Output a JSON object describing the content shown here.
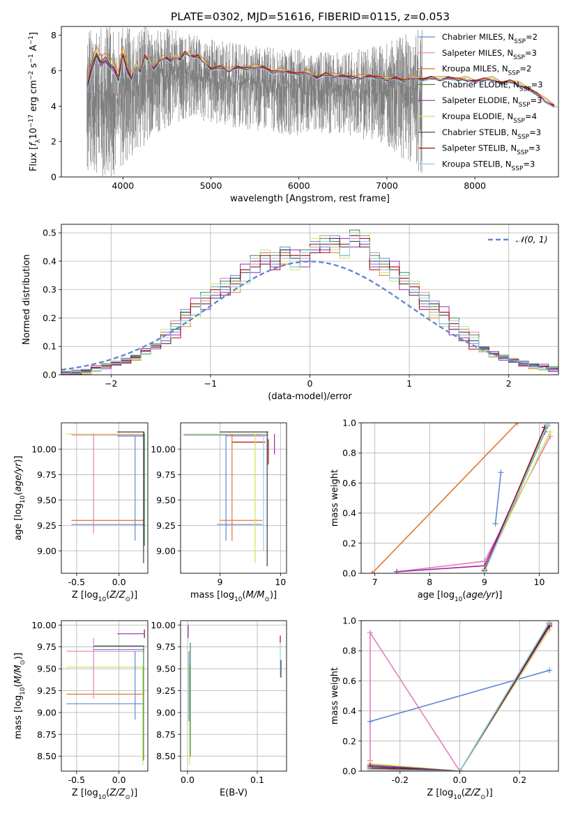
{
  "figure_title": "PLATE=0302, MJD=51616, FIBERID=0115, z=0.053",
  "legend_entries": [
    {
      "label": "Chabrier MILES, N",
      "sub": "SSP",
      "val": "=2",
      "color": "#5f87d6"
    },
    {
      "label": "Salpeter MILES, N",
      "sub": "SSP",
      "val": "=3",
      "color": "#e27fb8"
    },
    {
      "label": "Kroupa MILES, N",
      "sub": "SSP",
      "val": "=2",
      "color": "#e0762e"
    },
    {
      "label": "Chabrier ELODIE, N",
      "sub": "SSP",
      "val": "=3",
      "color": "#3c8c4a"
    },
    {
      "label": "Salpeter ELODIE, N",
      "sub": "SSP",
      "val": "=3",
      "color": "#9b27b0"
    },
    {
      "label": "Kroupa ELODIE, N",
      "sub": "SSP",
      "val": "=4",
      "color": "#cfe35a"
    },
    {
      "label": "Chabrier STELIB, N",
      "sub": "SSP",
      "val": "=3",
      "color": "#3a3a3a"
    },
    {
      "label": "Salpeter STELIB, N",
      "sub": "SSP",
      "val": "=3",
      "color": "#a30c0c"
    },
    {
      "label": "Kroupa STELIB, N",
      "sub": "SSP",
      "val": "=3",
      "color": "#8fd0e6"
    }
  ],
  "chart_data": [
    {
      "type": "line",
      "id": "spectrum",
      "xlabel": "wavelength [Angstrom, rest frame]",
      "ylabel": "Flux [fλ10⁻¹⁷ erg cm⁻² s⁻¹ A⁻¹]",
      "xlim": [
        3300,
        8950
      ],
      "ylim": [
        0,
        8.5
      ],
      "xticks": [
        4000,
        5000,
        6000,
        7000,
        8000
      ],
      "yticks": [
        0,
        2,
        4,
        6,
        8
      ],
      "data_color": "#808080",
      "data_envelope": {
        "x": [
          3590,
          3700,
          3800,
          3900,
          4000,
          4100,
          4200,
          4300,
          4500,
          4800,
          5000,
          5500,
          6000,
          6500,
          7000,
          7400
        ],
        "low": [
          0,
          0,
          0,
          0,
          0.5,
          0.8,
          1.5,
          2.2,
          2.8,
          3.2,
          3.0,
          2.6,
          2.3,
          2.4,
          1.8,
          0
        ],
        "high": [
          8.5,
          8.5,
          8.5,
          8.5,
          8.5,
          8.5,
          8.5,
          8.5,
          8.4,
          8.0,
          7.8,
          7.4,
          7.2,
          7.0,
          7.6,
          8.5
        ]
      },
      "model": {
        "x": [
          3600,
          3650,
          3700,
          3750,
          3800,
          3850,
          3900,
          3950,
          4000,
          4050,
          4100,
          4150,
          4200,
          4250,
          4300,
          4350,
          4400,
          4450,
          4500,
          4550,
          4600,
          4650,
          4700,
          4750,
          4800,
          4850,
          4900,
          5000,
          5100,
          5200,
          5300,
          5400,
          5500,
          5600,
          5700,
          5800,
          5900,
          6000,
          6100,
          6200,
          6300,
          6400,
          6500,
          6600,
          6700,
          6800,
          6900,
          7000,
          7100,
          7200,
          7300,
          7400,
          7500,
          7600,
          7700,
          7800,
          7900,
          8000,
          8100,
          8200,
          8300,
          8400,
          8500,
          8600,
          8700,
          8800,
          8900
        ],
        "y": [
          5.2,
          6.2,
          6.9,
          6.4,
          6.6,
          6.3,
          6.1,
          5.5,
          6.9,
          6.0,
          5.5,
          6.3,
          5.9,
          6.8,
          6.5,
          6.1,
          6.4,
          6.7,
          6.7,
          6.5,
          6.8,
          6.6,
          7.0,
          6.9,
          6.8,
          6.8,
          6.6,
          6.1,
          6.2,
          6.0,
          6.2,
          6.1,
          6.2,
          6.2,
          5.9,
          6.0,
          5.9,
          5.8,
          5.9,
          5.6,
          5.8,
          5.7,
          5.7,
          5.6,
          5.6,
          5.7,
          5.6,
          5.5,
          5.6,
          5.4,
          5.6,
          5.5,
          5.6,
          5.5,
          5.6,
          5.5,
          5.5,
          5.4,
          5.5,
          5.5,
          5.3,
          5.4,
          5.2,
          5.0,
          4.7,
          4.3,
          4.0
        ]
      }
    },
    {
      "type": "bar",
      "id": "residual-histogram",
      "xlabel": "(data-model)/error",
      "ylabel": "Normed distribution",
      "xlim": [
        -2.5,
        2.5
      ],
      "ylim": [
        0,
        0.53
      ],
      "xticks": [
        -2,
        -1,
        0,
        1,
        2
      ],
      "yticks": [
        0.0,
        0.1,
        0.2,
        0.3,
        0.4,
        0.5
      ],
      "bin_edges": [
        -2.5,
        -2.4,
        -2.3,
        -2.2,
        -2.1,
        -2.0,
        -1.9,
        -1.8,
        -1.7,
        -1.6,
        -1.5,
        -1.4,
        -1.3,
        -1.2,
        -1.1,
        -1.0,
        -0.9,
        -0.8,
        -0.7,
        -0.6,
        -0.5,
        -0.4,
        -0.3,
        -0.2,
        -0.1,
        0.0,
        0.1,
        0.2,
        0.3,
        0.4,
        0.5,
        0.6,
        0.7,
        0.8,
        0.9,
        1.0,
        1.1,
        1.2,
        1.3,
        1.4,
        1.5,
        1.6,
        1.7,
        1.8,
        1.9,
        2.0,
        2.1,
        2.2,
        2.3,
        2.4,
        2.5
      ],
      "base_heights": [
        0.005,
        0.008,
        0.01,
        0.02,
        0.03,
        0.04,
        0.05,
        0.06,
        0.08,
        0.1,
        0.13,
        0.16,
        0.2,
        0.23,
        0.26,
        0.29,
        0.31,
        0.32,
        0.35,
        0.39,
        0.41,
        0.4,
        0.42,
        0.4,
        0.41,
        0.45,
        0.46,
        0.46,
        0.44,
        0.48,
        0.47,
        0.4,
        0.38,
        0.36,
        0.33,
        0.3,
        0.26,
        0.23,
        0.2,
        0.17,
        0.14,
        0.12,
        0.09,
        0.07,
        0.06,
        0.05,
        0.04,
        0.03,
        0.025,
        0.02
      ],
      "normal_curve": {
        "label": "𝒩(0, 1)",
        "color": "#5f87d6"
      }
    },
    {
      "type": "scatter",
      "id": "age-vs-Z",
      "xlabel": "Z [log10(Z/Z⊙)]",
      "ylabel": "age [log10(age/yr)]",
      "xlim": [
        -0.68,
        0.34
      ],
      "ylim": [
        8.78,
        10.26
      ],
      "xticks": [
        -0.5,
        0.0
      ],
      "yticks": [
        9.0,
        9.25,
        9.5,
        9.75,
        10.0
      ],
      "segments": [
        {
          "c": "#cfe35a",
          "y": 10.15,
          "x0": -0.62,
          "x1": 0.3
        },
        {
          "c": "#3a3a3a",
          "y": 10.17,
          "x0": -0.02,
          "x1": 0.3
        },
        {
          "c": "#e27fb8",
          "y": 10.14,
          "x0": -0.56,
          "x1": 0.3
        },
        {
          "c": "#5f87d6",
          "y": 10.13,
          "x0": -0.02,
          "x1": 0.3
        },
        {
          "c": "#e27fb8",
          "y": 9.3,
          "x0": -0.56,
          "x1": 0.3
        },
        {
          "c": "#e0762e",
          "y": 9.3,
          "x0": -0.56,
          "x1": 0.3
        },
        {
          "c": "#5f87d6",
          "y": 9.26,
          "x0": -0.56,
          "x1": 0.3
        },
        {
          "c": "#e27fb8",
          "vx": -0.3,
          "y0": 9.17,
          "y1": 10.15
        },
        {
          "c": "#5f87d6",
          "vx": 0.19,
          "y0": 9.1,
          "y1": 10.13
        },
        {
          "c": "#3a3a3a",
          "vx": 0.29,
          "y0": 8.88,
          "y1": 10.17
        },
        {
          "c": "#3c8c4a",
          "vx": 0.3,
          "y0": 9.05,
          "y1": 10.16
        }
      ]
    },
    {
      "type": "scatter",
      "id": "age-vs-mass",
      "xlabel": "mass [log10(M/M⊙)]",
      "ylabel": "",
      "xlim": [
        8.35,
        10.1
      ],
      "ylim": [
        8.78,
        10.26
      ],
      "xticks": [
        9,
        10
      ],
      "yticks": [
        9.0,
        9.25,
        9.5,
        9.75,
        10.0
      ],
      "segments": [
        {
          "c": "#cfe35a",
          "y": 10.15,
          "x0": 8.4,
          "x1": 9.75
        },
        {
          "c": "#3a3a3a",
          "y": 10.17,
          "x0": 9.0,
          "x1": 9.8
        },
        {
          "c": "#5f87d6",
          "y": 10.14,
          "x0": 8.4,
          "x1": 9.8
        },
        {
          "c": "#e27fb8",
          "y": 10.13,
          "x0": 9.1,
          "x1": 9.75
        },
        {
          "c": "#a30c0c",
          "y": 10.07,
          "x0": 9.2,
          "x1": 9.75
        },
        {
          "c": "#e0762e",
          "y": 9.3,
          "x0": 9.0,
          "x1": 9.7
        },
        {
          "c": "#5f87d6",
          "y": 9.26,
          "x0": 8.95,
          "x1": 9.7
        },
        {
          "c": "#5f87d6",
          "vx": 9.1,
          "y0": 9.1,
          "y1": 10.14
        },
        {
          "c": "#e0762e",
          "vx": 9.2,
          "y0": 9.1,
          "y1": 10.15
        },
        {
          "c": "#cfe35a",
          "vx": 9.58,
          "y0": 8.88,
          "y1": 10.15
        },
        {
          "c": "#8fd0e6",
          "vx": 9.72,
          "y0": 9.0,
          "y1": 10.15
        },
        {
          "c": "#3a3a3a",
          "vx": 9.78,
          "y0": 8.85,
          "y1": 10.17
        },
        {
          "c": "#9b27b0",
          "vx": 9.9,
          "y0": 9.95,
          "y1": 10.15
        },
        {
          "c": "#a30c0c",
          "vx": 9.8,
          "y0": 9.85,
          "y1": 10.1
        }
      ]
    },
    {
      "type": "line",
      "id": "mass-weight-vs-age",
      "xlabel": "age [log10(age/yr)]",
      "ylabel": "mass weight",
      "xlim": [
        6.75,
        10.35
      ],
      "ylim": [
        0,
        1.0
      ],
      "xticks": [
        7,
        8,
        9,
        10
      ],
      "yticks": [
        0.0,
        0.2,
        0.4,
        0.6,
        0.8,
        1.0
      ],
      "series": [
        {
          "c": "#e0762e",
          "x": [
            6.95,
            9.6
          ],
          "y": [
            0.0,
            1.0
          ]
        },
        {
          "c": "#e27fb8",
          "x": [
            7.4,
            9.0,
            10.2
          ],
          "y": [
            0.01,
            0.08,
            0.91
          ]
        },
        {
          "c": "#9b27b0",
          "x": [
            7.4,
            9.0,
            10.1
          ],
          "y": [
            0.01,
            0.05,
            0.94
          ]
        },
        {
          "c": "#cfe35a",
          "x": [
            9.0,
            10.2
          ],
          "y": [
            0.03,
            0.94
          ]
        },
        {
          "c": "#3a3a3a",
          "x": [
            9.0,
            10.1
          ],
          "y": [
            0.02,
            0.97
          ]
        },
        {
          "c": "#a30c0c",
          "x": [
            9.0,
            10.1
          ],
          "y": [
            0.02,
            0.97
          ]
        },
        {
          "c": "#3c8c4a",
          "x": [
            9.0,
            10.15
          ],
          "y": [
            0.01,
            0.98
          ]
        },
        {
          "c": "#8fd0e6",
          "x": [
            9.0,
            10.15
          ],
          "y": [
            0.01,
            0.99
          ]
        },
        {
          "c": "#5f87d6",
          "x": [
            9.2,
            9.3
          ],
          "y": [
            0.33,
            0.67
          ]
        }
      ]
    },
    {
      "type": "scatter",
      "id": "mass-vs-Z",
      "xlabel": "Z [log10(Z/Z⊙)]",
      "ylabel": "mass [log10(M/M⊙)]",
      "xlim": [
        -0.68,
        0.34
      ],
      "ylim": [
        8.33,
        10.05
      ],
      "xticks": [
        -0.5,
        0.0
      ],
      "yticks": [
        8.5,
        8.75,
        9.0,
        9.25,
        9.5,
        9.75,
        10.0
      ],
      "segments": [
        {
          "c": "#9b27b0",
          "y": 9.9,
          "x0": -0.02,
          "x1": 0.3
        },
        {
          "c": "#3a3a3a",
          "y": 9.76,
          "x0": -0.3,
          "x1": 0.3
        },
        {
          "c": "#5f87d6",
          "y": 9.72,
          "x0": -0.3,
          "x1": 0.3
        },
        {
          "c": "#e27fb8",
          "y": 9.7,
          "x0": -0.62,
          "x1": 0.3
        },
        {
          "c": "#cfe35a",
          "y": 9.52,
          "x0": -0.62,
          "x1": 0.3
        },
        {
          "c": "#e0762e",
          "y": 9.21,
          "x0": -0.62,
          "x1": 0.3
        },
        {
          "c": "#5f87d6",
          "y": 9.1,
          "x0": -0.62,
          "x1": 0.3
        },
        {
          "c": "#e27fb8",
          "vx": -0.3,
          "y0": 9.16,
          "y1": 9.85
        },
        {
          "c": "#5f87d6",
          "vx": 0.19,
          "y0": 8.92,
          "y1": 9.7
        },
        {
          "c": "#cfe35a",
          "vx": 0.28,
          "y0": 8.4,
          "y1": 9.52
        },
        {
          "c": "#3c8c4a",
          "vx": 0.29,
          "y0": 8.45,
          "y1": 9.75
        },
        {
          "c": "#a30c0c",
          "vx": 0.3,
          "y0": 9.85,
          "y1": 9.95
        }
      ]
    },
    {
      "type": "scatter",
      "id": "mass-vs-EBV",
      "xlabel": "E(B-V)",
      "ylabel": "",
      "xlim": [
        -0.01,
        0.142
      ],
      "ylim": [
        8.33,
        10.05
      ],
      "xticks": [
        0.0,
        0.1
      ],
      "yticks": [
        8.5,
        8.75,
        9.0,
        9.25,
        9.5,
        9.75,
        10.0
      ],
      "segments": [
        {
          "c": "#9b27b0",
          "vx": 0.001,
          "y0": 9.85,
          "y1": 10.0
        },
        {
          "c": "#cfe35a",
          "vx": 0.003,
          "y0": 8.4,
          "y1": 9.55
        },
        {
          "c": "#3c8c4a",
          "vx": 0.004,
          "y0": 8.5,
          "y1": 9.8
        },
        {
          "c": "#5f87d6",
          "vx": 0.002,
          "y0": 8.9,
          "y1": 9.7
        },
        {
          "c": "#a30c0c",
          "vx": 0.133,
          "y0": 9.8,
          "y1": 9.88
        },
        {
          "c": "#8fd0e6",
          "vx": 0.133,
          "y0": 9.4,
          "y1": 9.8
        },
        {
          "c": "#3a3a3a",
          "vx": 0.134,
          "y0": 9.4,
          "y1": 9.6
        }
      ]
    },
    {
      "type": "line",
      "id": "mass-weight-vs-Z",
      "xlabel": "Z [log10(Z/Z⊙)]",
      "ylabel": "mass weight",
      "xlim": [
        -0.33,
        0.33
      ],
      "ylim": [
        0,
        1.0
      ],
      "xticks": [
        -0.2,
        0.0,
        0.2
      ],
      "yticks": [
        0.0,
        0.2,
        0.4,
        0.6,
        0.8,
        1.0
      ],
      "series": [
        {
          "c": "#e27fb8",
          "x": [
            -0.3,
            -0.3,
            0.0,
            0.3
          ],
          "y": [
            0.07,
            0.92,
            0.0,
            0.97
          ]
        },
        {
          "c": "#5f87d6",
          "x": [
            -0.3,
            0.3
          ],
          "y": [
            0.33,
            0.67
          ]
        },
        {
          "c": "#cfe35a",
          "x": [
            -0.3,
            0.0,
            0.3
          ],
          "y": [
            0.05,
            0.0,
            0.94
          ]
        },
        {
          "c": "#9b27b0",
          "x": [
            -0.3,
            0.0,
            0.3
          ],
          "y": [
            0.04,
            0.0,
            0.96
          ]
        },
        {
          "c": "#3a3a3a",
          "x": [
            -0.3,
            0.0,
            0.3
          ],
          "y": [
            0.03,
            0.0,
            0.97
          ]
        },
        {
          "c": "#a30c0c",
          "x": [
            -0.3,
            0.0,
            0.3
          ],
          "y": [
            0.02,
            0.0,
            0.98
          ]
        },
        {
          "c": "#3c8c4a",
          "x": [
            -0.3,
            0.0,
            0.3
          ],
          "y": [
            0.01,
            0.0,
            0.99
          ]
        },
        {
          "c": "#8fd0e6",
          "x": [
            -0.3,
            0.0,
            0.3
          ],
          "y": [
            0.01,
            0.0,
            0.99
          ]
        }
      ]
    }
  ]
}
